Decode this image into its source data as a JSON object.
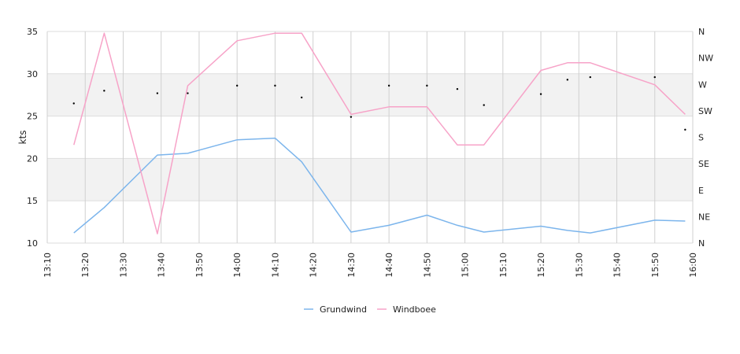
{
  "chart_data": {
    "type": "line",
    "title": "",
    "xlabel": "",
    "ylabel": "kts",
    "ylim": [
      10,
      35
    ],
    "y_ticks": [
      10,
      15,
      20,
      25,
      30,
      35
    ],
    "x_ticks": [
      "13:10",
      "13:20",
      "13:30",
      "13:40",
      "13:50",
      "14:00",
      "14:10",
      "14:20",
      "14:30",
      "14:40",
      "14:50",
      "15:00",
      "15:10",
      "15:20",
      "15:30",
      "15:40",
      "15:50",
      "16:00"
    ],
    "xlim": [
      "13:10",
      "16:00"
    ],
    "bands": [
      [
        15,
        20
      ],
      [
        25,
        30
      ]
    ],
    "grid": true,
    "legend": "bottom",
    "y2_ticks": [
      "N",
      "NE",
      "E",
      "SE",
      "S",
      "SW",
      "W",
      "NW",
      "N"
    ],
    "series": [
      {
        "name": "Grundwind",
        "color": "#7cb5ec",
        "x": [
          "13:17",
          "13:25",
          "13:39",
          "13:47",
          "14:00",
          "14:10",
          "14:17",
          "14:30",
          "14:40",
          "14:50",
          "14:58",
          "15:05",
          "15:20",
          "15:27",
          "15:33",
          "15:50",
          "15:58"
        ],
        "values": [
          11.2,
          14.2,
          20.4,
          20.6,
          22.2,
          22.4,
          19.6,
          11.3,
          12.1,
          13.3,
          12.1,
          11.3,
          12.0,
          11.5,
          11.2,
          12.7,
          12.6
        ]
      },
      {
        "name": "Windboee",
        "color": "#f7a3c8",
        "x": [
          "13:17",
          "13:25",
          "13:39",
          "13:47",
          "14:00",
          "14:10",
          "14:17",
          "14:30",
          "14:40",
          "14:50",
          "14:58",
          "15:05",
          "15:20",
          "15:27",
          "15:33",
          "15:50",
          "15:58"
        ],
        "values": [
          21.6,
          34.8,
          11.1,
          28.6,
          33.9,
          34.8,
          34.8,
          25.2,
          26.1,
          26.1,
          21.6,
          21.6,
          30.4,
          31.3,
          31.3,
          28.7,
          25.2
        ]
      }
    ],
    "direction_points": {
      "x": [
        "13:17",
        "13:25",
        "13:39",
        "13:47",
        "14:00",
        "14:10",
        "14:17",
        "14:30",
        "14:40",
        "14:50",
        "14:58",
        "15:05",
        "15:20",
        "15:27",
        "15:33",
        "15:50",
        "15:58"
      ],
      "values": [
        26.5,
        28.0,
        27.7,
        27.7,
        28.6,
        28.6,
        27.2,
        24.9,
        28.6,
        28.6,
        28.2,
        26.3,
        27.6,
        29.3,
        29.6,
        29.6,
        23.4
      ]
    }
  }
}
